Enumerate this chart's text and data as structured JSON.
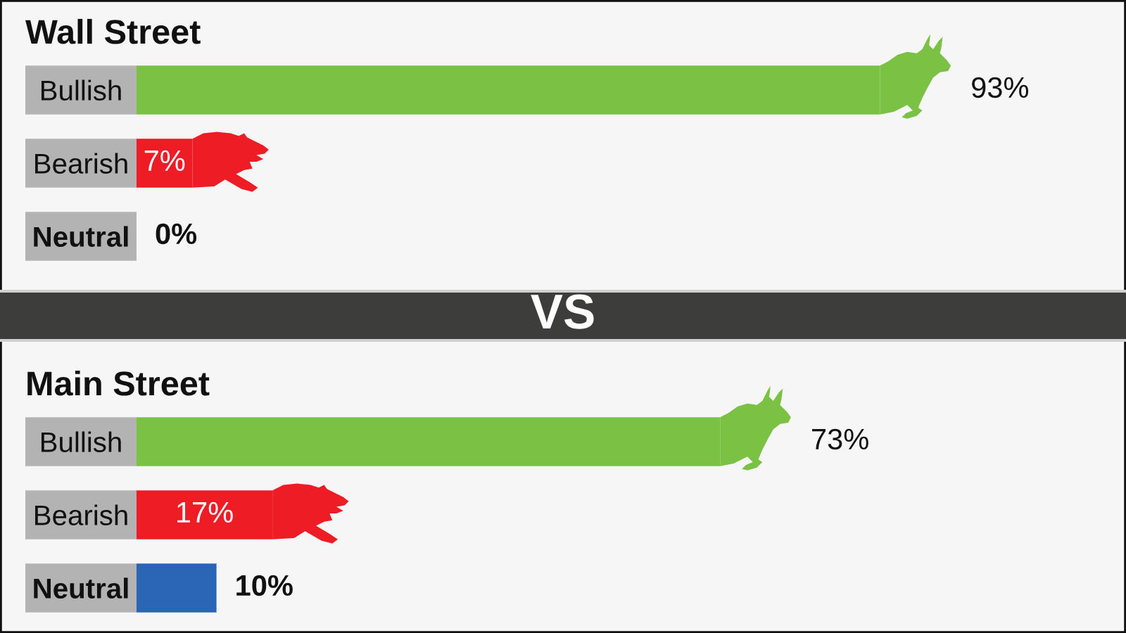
{
  "chart_data": [
    {
      "type": "bar",
      "title": "Wall Street",
      "orientation": "horizontal",
      "categories": [
        "Bullish",
        "Bearish",
        "Neutral"
      ],
      "values": [
        93,
        7,
        0
      ],
      "colors": [
        "#7bc143",
        "#ee1c25",
        "#2b65b5"
      ],
      "value_labels": [
        "93%",
        "7%",
        "0%"
      ]
    },
    {
      "type": "other",
      "title": "VS"
    },
    {
      "type": "bar",
      "title": "Main Street",
      "orientation": "horizontal",
      "categories": [
        "Bullish",
        "Bearish",
        "Neutral"
      ],
      "values": [
        73,
        17,
        10
      ],
      "colors": [
        "#7bc143",
        "#ee1c25",
        "#2b65b5"
      ],
      "value_labels": [
        "73%",
        "17%",
        "10%"
      ]
    }
  ]
}
